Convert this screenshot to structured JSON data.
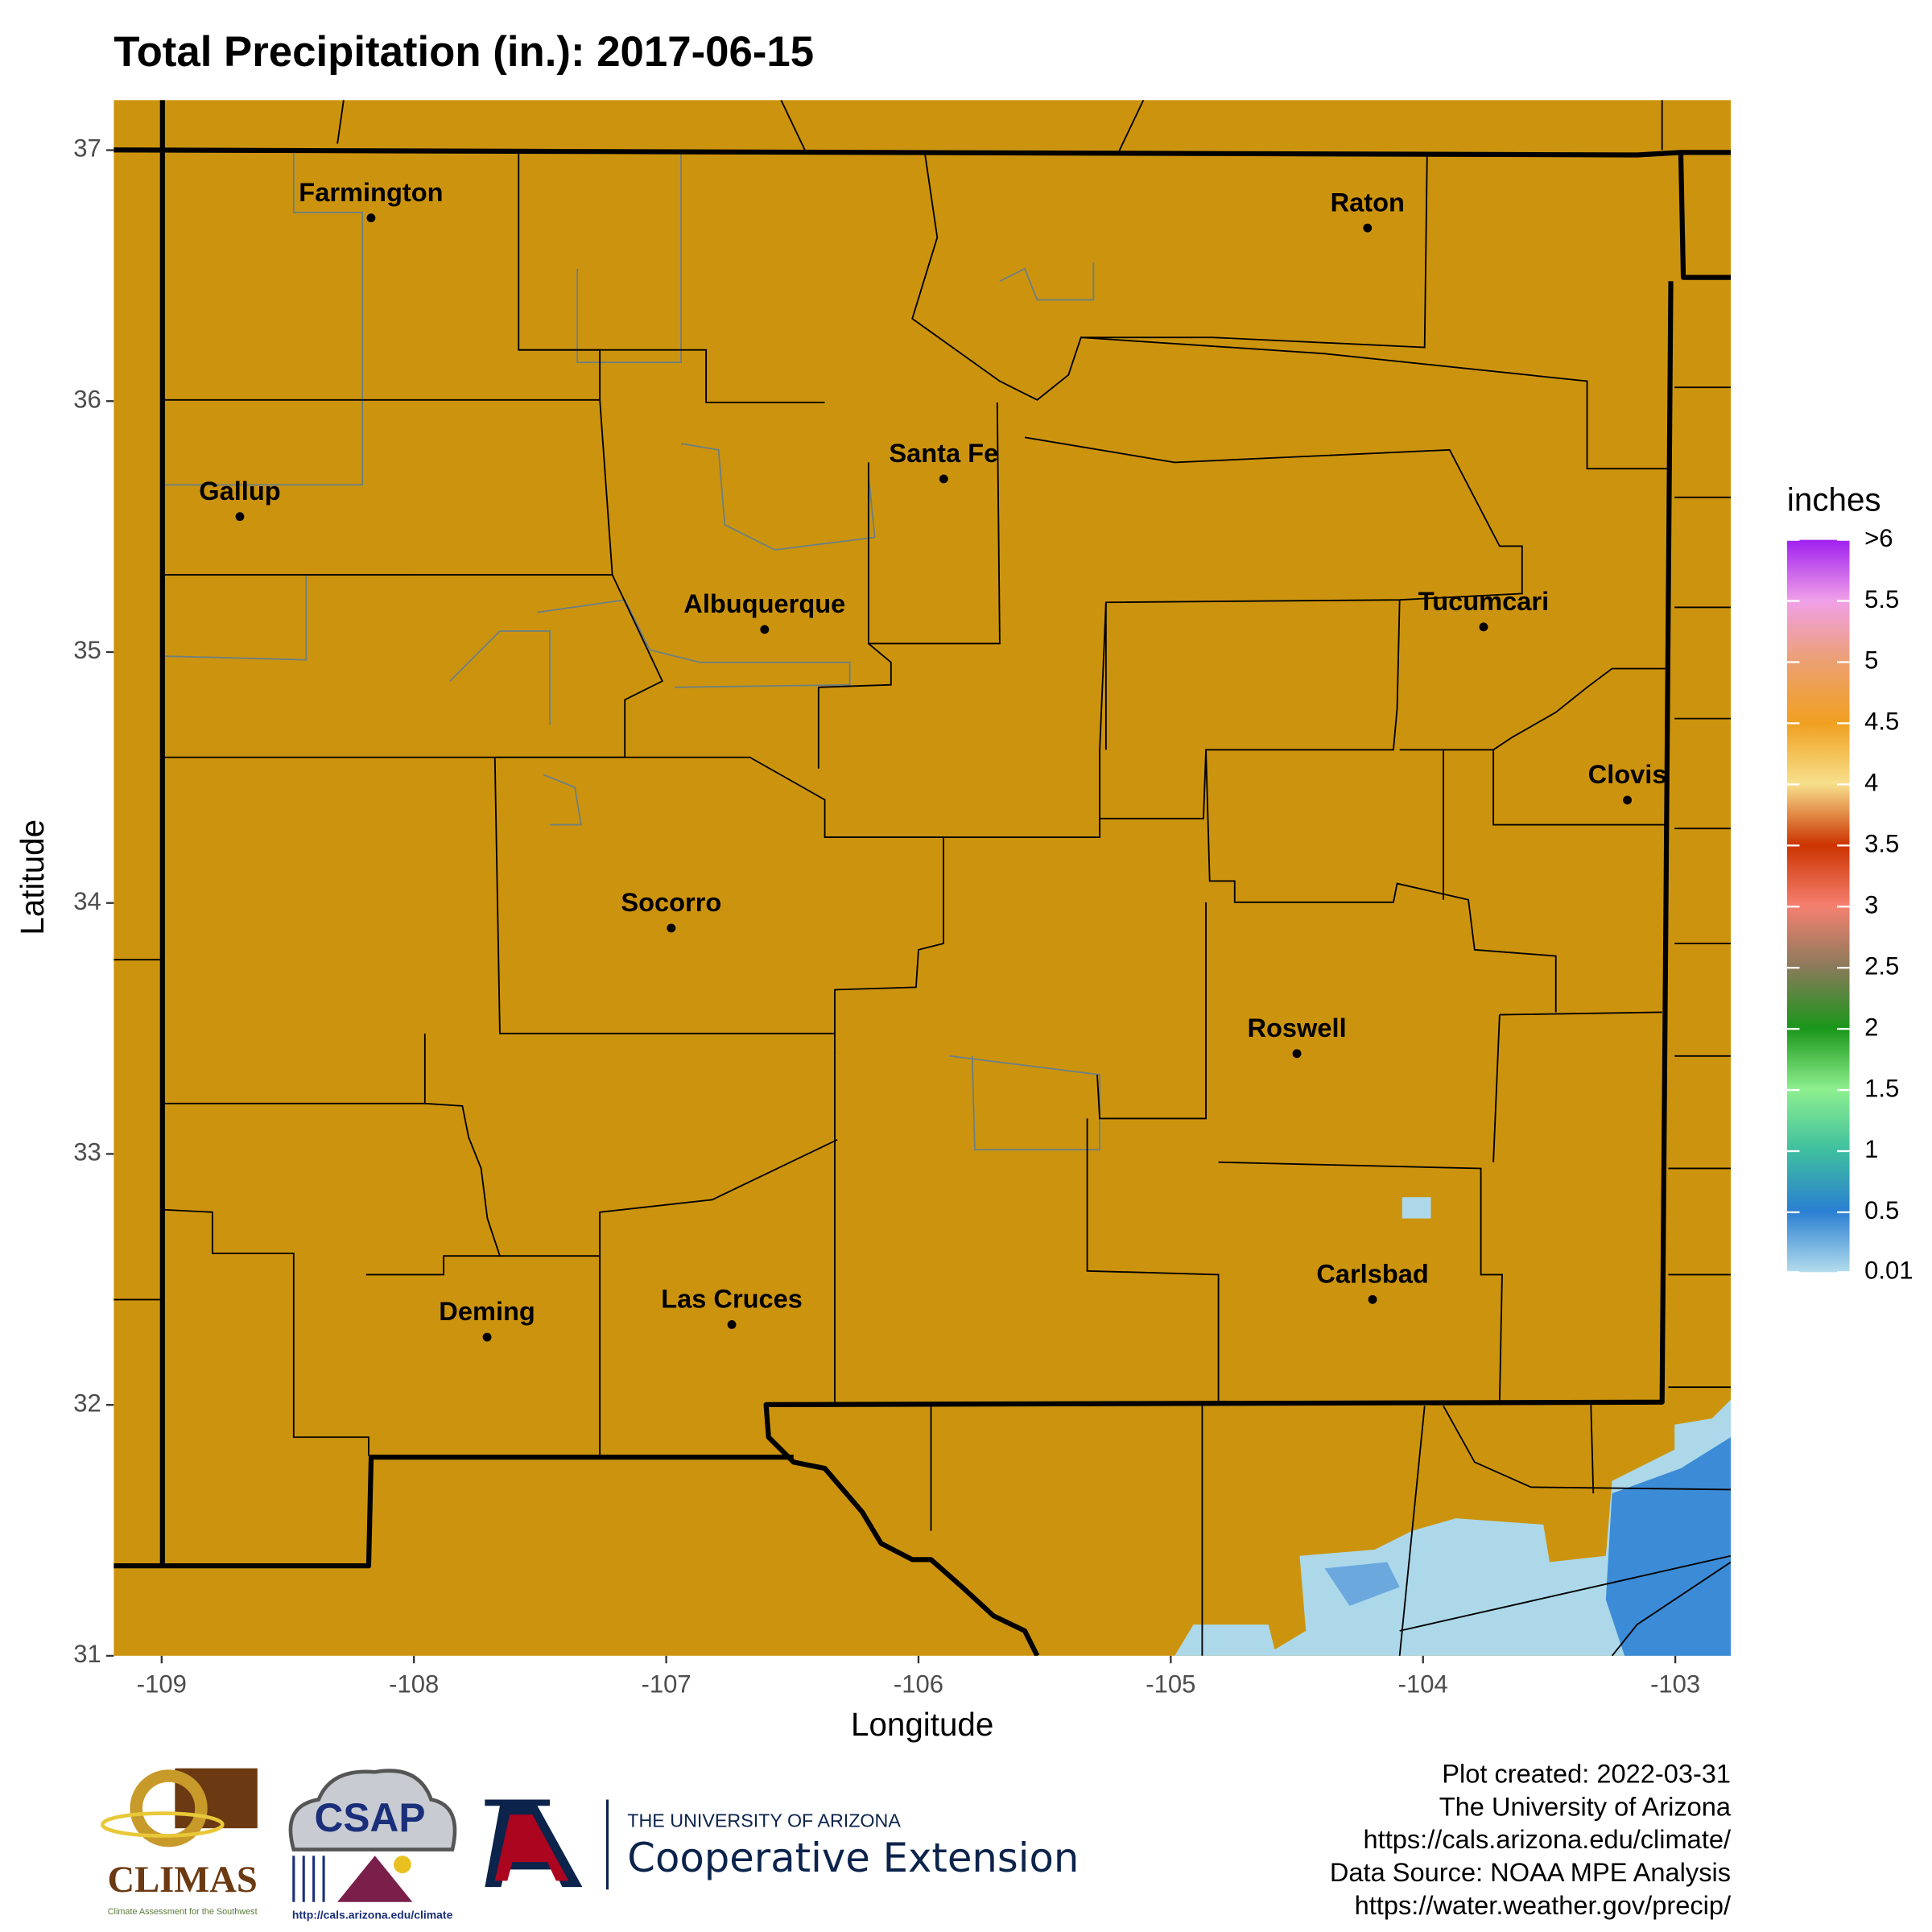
{
  "chart_data": {
    "type": "map",
    "title": "Total Precipitation (in.): 2017-06-15",
    "x_label": "Longitude",
    "y_label": "Latitude",
    "xlim": [
      -109.19,
      -102.78
    ],
    "ylim": [
      31,
      37.2
    ],
    "xticks": [
      -109,
      -108,
      -107,
      -106,
      -105,
      -104,
      -103
    ],
    "yticks": [
      31,
      32,
      33,
      34,
      35,
      36,
      37
    ],
    "cities": [
      {
        "name": "Farmington",
        "lon": -108.17,
        "lat": 36.73
      },
      {
        "name": "Raton",
        "lon": -104.22,
        "lat": 36.69
      },
      {
        "name": "Gallup",
        "lon": -108.69,
        "lat": 35.54
      },
      {
        "name": "Santa Fe",
        "lon": -105.9,
        "lat": 35.69
      },
      {
        "name": "Albuquerque",
        "lon": -106.61,
        "lat": 35.09
      },
      {
        "name": "Tucumcari",
        "lon": -103.76,
        "lat": 35.1
      },
      {
        "name": "Clovis",
        "lon": -103.19,
        "lat": 34.41
      },
      {
        "name": "Socorro",
        "lon": -106.98,
        "lat": 33.9
      },
      {
        "name": "Roswell",
        "lon": -104.5,
        "lat": 33.4
      },
      {
        "name": "Carlsbad",
        "lon": -104.2,
        "lat": 32.42
      },
      {
        "name": "Deming",
        "lon": -107.71,
        "lat": 32.27
      },
      {
        "name": "Las Cruces",
        "lon": -106.74,
        "lat": 32.32
      }
    ],
    "legend": {
      "title": "inches",
      "lim": [
        0.01,
        6
      ],
      "ticks": [
        0.01,
        0.5,
        1,
        1.5,
        2,
        2.5,
        3,
        3.5,
        4,
        4.5,
        5,
        5.5,
        {
          "value": 6,
          "label": ">6"
        }
      ]
    }
  },
  "footer": {
    "credits": [
      "Plot created: 2022-03-31",
      "The University of Arizona",
      "https://cals.arizona.edu/climate/",
      "Data Source: NOAA MPE Analysis",
      "https://water.weather.gov/precip/"
    ],
    "logos": {
      "climas": "CLIMAS",
      "climas_sub": "Climate Assessment for the Southwest",
      "csap": "CSAP",
      "csap_url": "http://cals.arizona.edu/climate",
      "ua": "THE UNIVERSITY OF ARIZONA",
      "extension": "Cooperative Extension"
    }
  }
}
